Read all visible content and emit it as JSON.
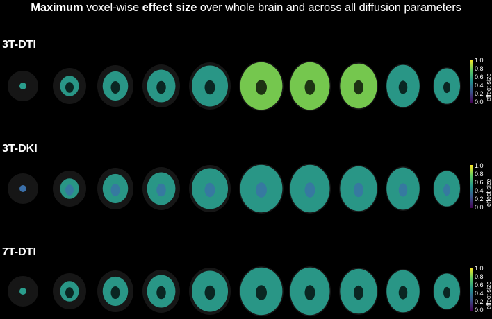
{
  "title": {
    "part1": "Maximum",
    "part2": " voxel-wise ",
    "part3": "effect size",
    "part4": " over whole brain and across all diffusion parameters"
  },
  "rows": [
    {
      "label": "3T-DTI"
    },
    {
      "label": "3T-DKI"
    },
    {
      "label": "7T-DTI"
    }
  ],
  "colorbar": {
    "label": "effect size",
    "ticks": [
      "1.0",
      "0.8",
      "0.6",
      "0.4",
      "0.2",
      "0.0"
    ],
    "colormap": [
      "#440154",
      "#3b528b",
      "#21918c",
      "#5ec962",
      "#fde725"
    ]
  },
  "colors": {
    "background": "#000000",
    "tissue_main": "#2a9d8c",
    "tissue_high": "#7ad151",
    "tissue_low": "#3b6fa8"
  }
}
